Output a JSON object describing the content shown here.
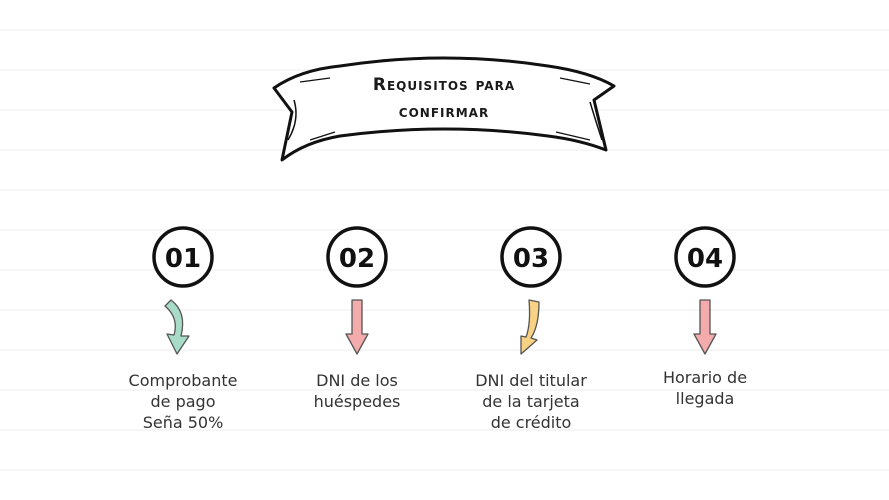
{
  "header": {
    "title_lines": [
      "Requisitos para",
      "confirmar"
    ]
  },
  "steps": [
    {
      "number": "01",
      "label_lines": [
        "Comprobante",
        "de pago",
        "Seña 50%"
      ]
    },
    {
      "number": "02",
      "label_lines": [
        "DNI de los",
        "huéspedes"
      ]
    },
    {
      "number": "03",
      "label_lines": [
        "DNI del titular",
        "de la tarjeta",
        "de crédito"
      ]
    },
    {
      "number": "04",
      "label_lines": [
        "Horario de",
        "llegada"
      ]
    }
  ]
}
